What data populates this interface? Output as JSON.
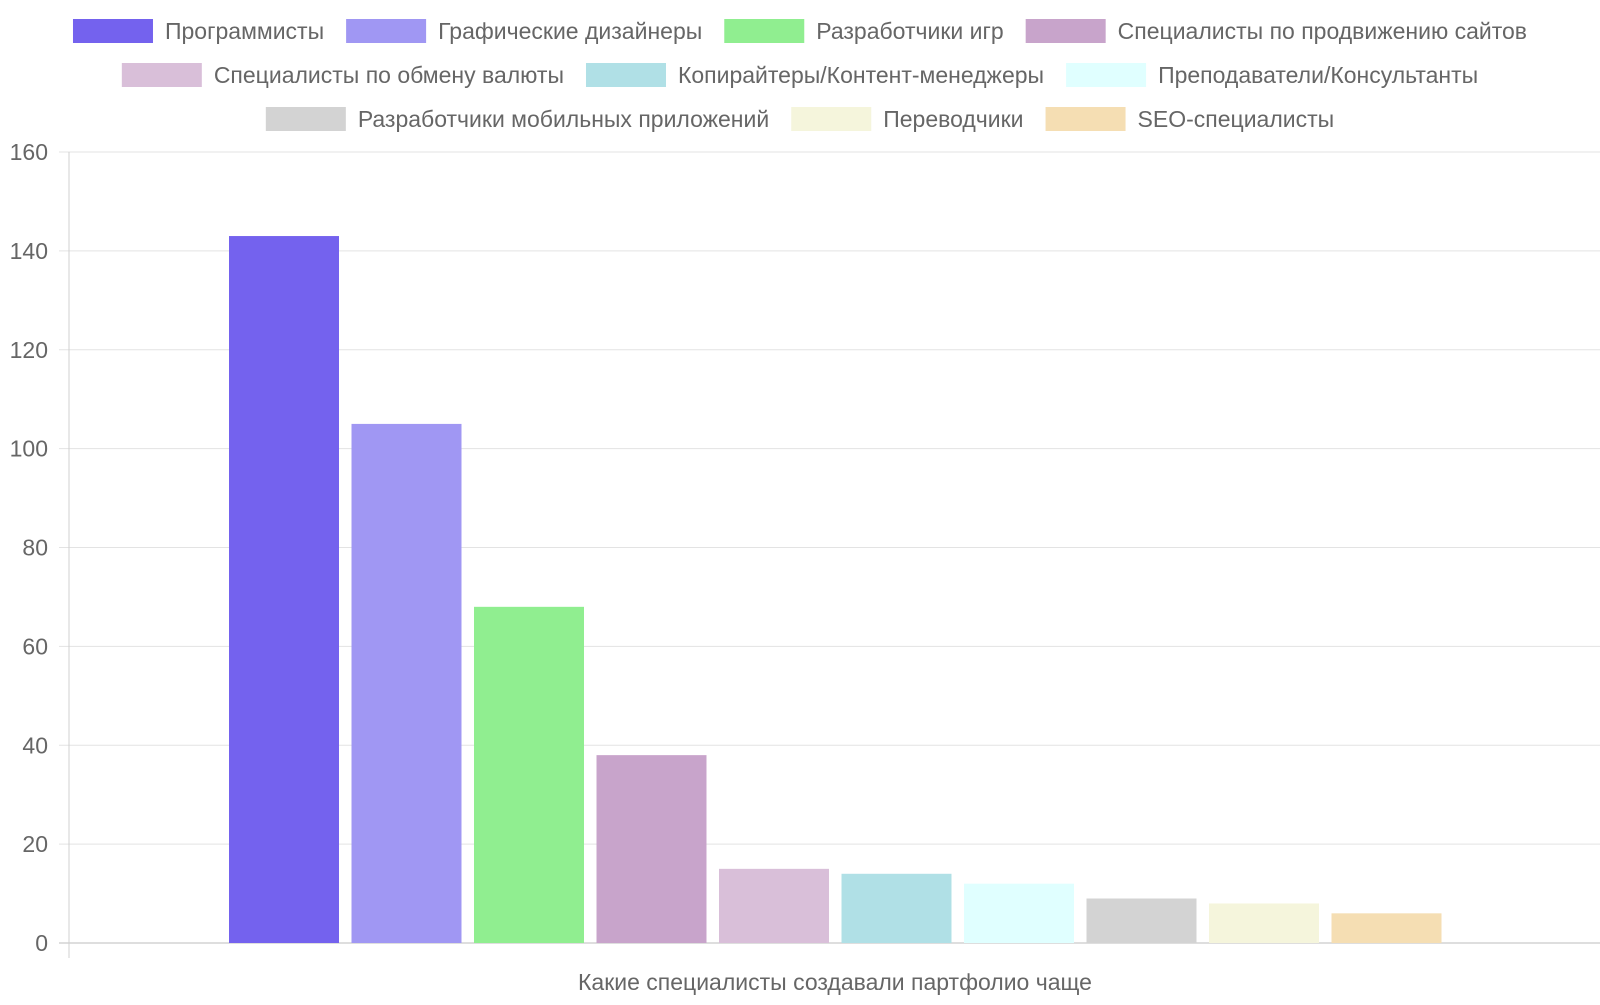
{
  "chart_data": {
    "type": "bar",
    "xlabel": "Какие специалисты создавали партфолио чаще",
    "ylabel": "",
    "ylim": [
      0,
      160
    ],
    "y_ticks": [
      "0",
      "20",
      "40",
      "60",
      "80",
      "100",
      "120",
      "140",
      "160"
    ],
    "grid": true,
    "legend_position": "top",
    "series": [
      {
        "name": "Программисты",
        "value": 143,
        "color": "#7462ee"
      },
      {
        "name": "Графические дизайнеры",
        "value": 105,
        "color": "#a097f3"
      },
      {
        "name": "Разработчики игр",
        "value": 68,
        "color": "#90ee90"
      },
      {
        "name": "Специалисты по продвижению сайтов",
        "value": 38,
        "color": "#c8a4cb"
      },
      {
        "name": "Специалисты по обмену валюты",
        "value": 15,
        "color": "#d9bfd9"
      },
      {
        "name": "Копирайтеры/Контент-менеджеры",
        "value": 14,
        "color": "#b0e0e6"
      },
      {
        "name": "Преподаватели/Консультанты",
        "value": 12,
        "color": "#e0ffff"
      },
      {
        "name": "Разработчики мобильных приложений",
        "value": 9,
        "color": "#d3d3d3"
      },
      {
        "name": "Переводчики",
        "value": 8,
        "color": "#f5f5dc"
      },
      {
        "name": "SEO-специалисты",
        "value": 6,
        "color": "#f5deb3"
      }
    ]
  }
}
